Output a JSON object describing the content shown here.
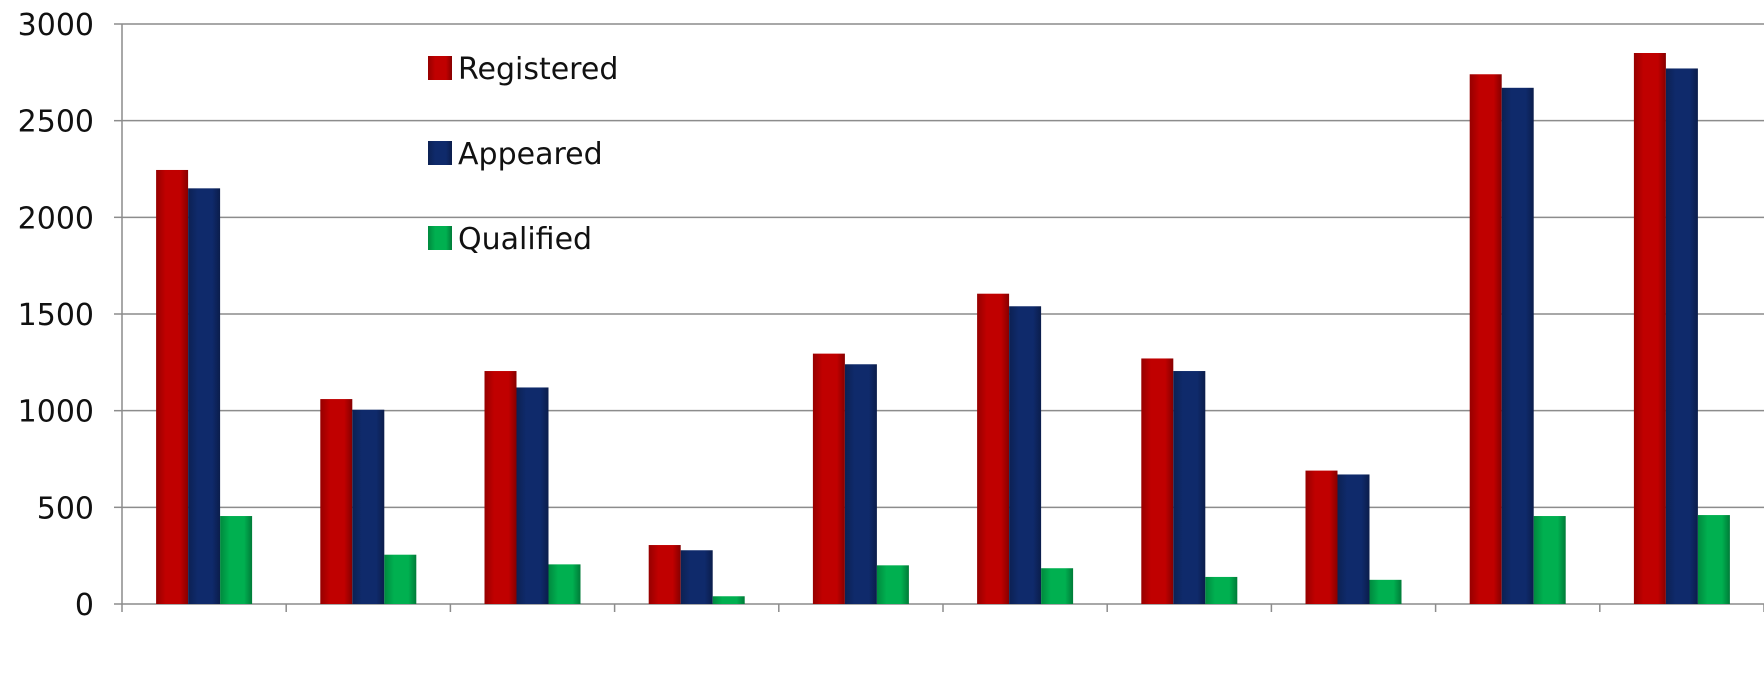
{
  "chart_data": {
    "type": "bar",
    "title": "",
    "xlabel": "",
    "ylabel": "",
    "ylim": [
      0,
      3000
    ],
    "yticks": [
      0,
      500,
      1000,
      1500,
      2000,
      2500,
      3000
    ],
    "yticks_labels": [
      "0",
      "500",
      "1000",
      "1500",
      "2000",
      "2500",
      "3000"
    ],
    "categories": [
      "",
      "",
      "",
      "",
      "",
      "",
      "",
      "",
      "",
      ""
    ],
    "grid": true,
    "legend_position": "top-left",
    "series": [
      {
        "name": "Registered",
        "color": "#c00000",
        "values": [
          2245,
          1060,
          1205,
          305,
          1295,
          1605,
          1270,
          690,
          2740,
          2850
        ]
      },
      {
        "name": "Appeared",
        "color": "#0f2a6b",
        "values": [
          2150,
          1005,
          1120,
          278,
          1240,
          1540,
          1205,
          670,
          2670,
          2770
        ]
      },
      {
        "name": "Qualified",
        "color": "#00b050",
        "values": [
          455,
          255,
          205,
          40,
          200,
          185,
          140,
          125,
          455,
          460
        ]
      }
    ]
  }
}
